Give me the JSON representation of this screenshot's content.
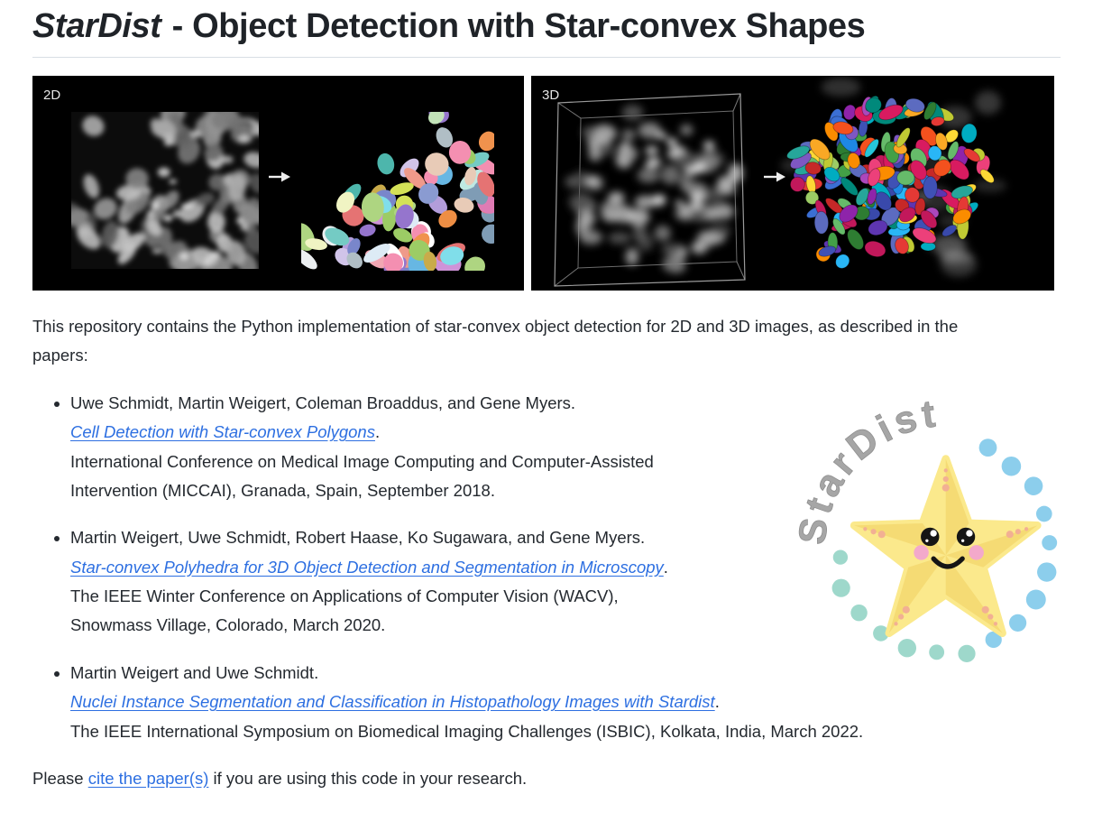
{
  "page": {
    "title_italic": "StarDist",
    "title_rest": " - Object Detection with Star-convex Shapes"
  },
  "figures": {
    "label_2d": "2D",
    "label_3d": "3D",
    "palette_2d": [
      "#C2E3B8",
      "#F2A7B3",
      "#EE8E44",
      "#BFE9E2",
      "#74CBC4",
      "#F48FB1",
      "#CE2A80",
      "#C2184B",
      "#E07BB4",
      "#9575CD",
      "#7986CB",
      "#5C83C4",
      "#67B7E3",
      "#80DEEA",
      "#4DB6AC",
      "#66BB6A",
      "#9CCC65",
      "#AED581",
      "#D4E157",
      "#C9AB4A",
      "#D7A586",
      "#E8CBB7",
      "#F0F4C3",
      "#FFFFFF",
      "#ECEFF1",
      "#B0BEC5",
      "#7F9CB5",
      "#B39DDB",
      "#D1C4E9",
      "#CE93D8",
      "#EF9A8A",
      "#F0924D",
      "#A5D6C8",
      "#DDEBF5",
      "#8A9BD1",
      "#E57373"
    ],
    "palette_3d": [
      "#2E7D32",
      "#43A047",
      "#66BB6A",
      "#9CCC65",
      "#C0CA33",
      "#FDD835",
      "#F9A825",
      "#FB8C00",
      "#F4511E",
      "#E53935",
      "#C62828",
      "#D81B60",
      "#EC407A",
      "#C2185B",
      "#AB47BC",
      "#8E24AA",
      "#7E57C2",
      "#5E35B1",
      "#3949AB",
      "#3F51B5",
      "#5C6BC0",
      "#3B6FD4",
      "#1E88E5",
      "#29B6F6",
      "#00ACC1",
      "#26C6DA",
      "#00897B",
      "#26A69A"
    ]
  },
  "intro": "This repository contains the Python implementation of star-convex object detection for 2D and 3D images, as described in the papers:",
  "papers": [
    {
      "authors": "Uwe Schmidt, Martin Weigert, Coleman Broaddus, and Gene Myers.",
      "link": "Cell Detection with Star-convex Polygons",
      "after_link": ".",
      "venue": "International Conference on Medical Image Computing and Computer-Assisted Intervention (MICCAI), Granada, Spain, September 2018."
    },
    {
      "authors": "Martin Weigert, Uwe Schmidt, Robert Haase, Ko Sugawara, and Gene Myers.",
      "link": "Star-convex Polyhedra for 3D Object Detection and Segmentation in Microscopy",
      "after_link": ".",
      "venue": "The IEEE Winter Conference on Applications of Computer Vision (WACV), Snowmass Village, Colorado, March 2020."
    },
    {
      "authors": "Martin Weigert and Uwe Schmidt.",
      "link": "Nuclei Instance Segmentation and Classification in Histopathology Images with Stardist",
      "after_link": ".",
      "venue": "The IEEE International Symposium on Biomedical Imaging Challenges (ISBIC), Kolkata, India, March 2022."
    }
  ],
  "footer": {
    "before_link": "Please ",
    "link_label": "cite the paper(s)",
    "after_link": " if you are using this code in your research."
  },
  "logo": {
    "text": "StarDist",
    "star": "#FBE98C",
    "star_shade": "#F5DB74",
    "dot_blue": "#8CCEEC",
    "dot_teal": "#9ED8CB",
    "cheek": "#F3A9CB",
    "freckle": "#F2B093",
    "eye": "#151515",
    "smile": "#151515"
  },
  "colors": {
    "link": "#2D6FE1",
    "text": "#24292F",
    "heading": "#1F2328",
    "divider": "#D8DEE4",
    "panel_bg": "#000000",
    "panel_label": "#E6E6E6"
  }
}
